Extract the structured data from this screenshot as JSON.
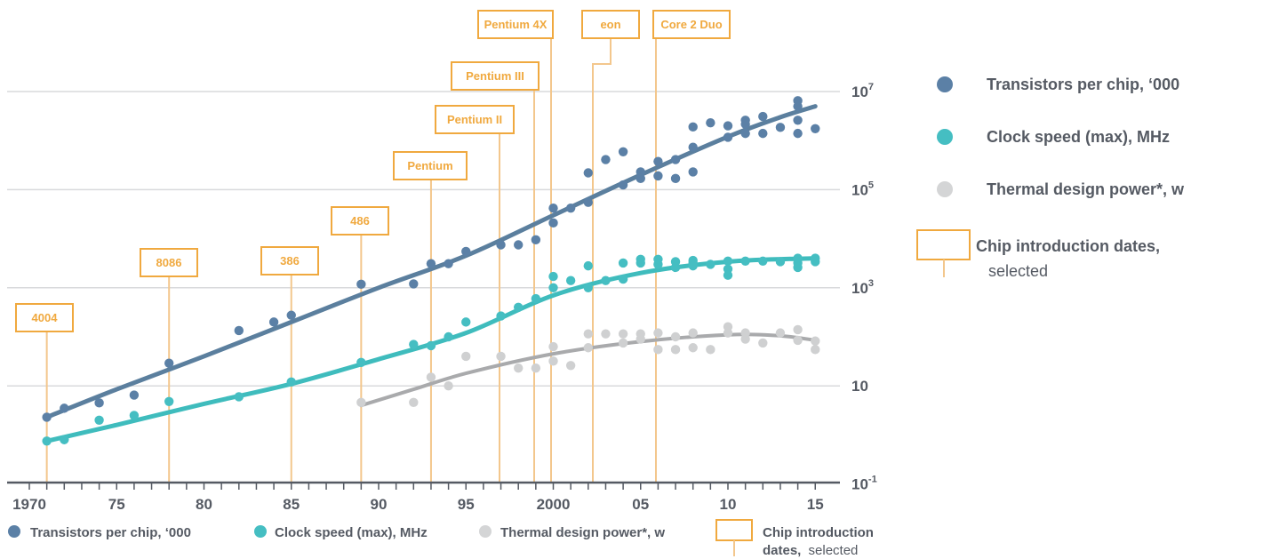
{
  "chart_data": {
    "type": "scatter",
    "x_ticks": [
      {
        "value": 1970,
        "label": "1970"
      },
      {
        "value": 1975,
        "label": "75"
      },
      {
        "value": 1980,
        "label": "80"
      },
      {
        "value": 1985,
        "label": "85"
      },
      {
        "value": 1990,
        "label": "90"
      },
      {
        "value": 1995,
        "label": "95"
      },
      {
        "value": 2000,
        "label": "2000"
      },
      {
        "value": 2005,
        "label": "05"
      },
      {
        "value": 2010,
        "label": "10"
      },
      {
        "value": 2015,
        "label": "15"
      }
    ],
    "xlim": [
      1969,
      2016
    ],
    "y_scale": "log",
    "ylim": [
      0.1,
      10000000
    ],
    "y_ticks": [
      {
        "value": 0.1,
        "base": "10",
        "exp": "-1"
      },
      {
        "value": 10,
        "base": "10",
        "exp": ""
      },
      {
        "value": 1000,
        "base": "10",
        "exp": "3"
      },
      {
        "value": 100000,
        "base": "10",
        "exp": "5"
      },
      {
        "value": 10000000,
        "base": "10",
        "exp": "7"
      }
    ],
    "grid": true,
    "series": [
      {
        "name": "Transistors per chip, ‘000",
        "color": "#5b80a6",
        "points": [
          [
            1971,
            2.3
          ],
          [
            1972,
            3.5
          ],
          [
            1974,
            4.5
          ],
          [
            1976,
            6.5
          ],
          [
            1978,
            29
          ],
          [
            1982,
            134
          ],
          [
            1984,
            200
          ],
          [
            1985,
            275
          ],
          [
            1989,
            1180
          ],
          [
            1992,
            1200
          ],
          [
            1993,
            3100
          ],
          [
            1994,
            3100
          ],
          [
            1995,
            5500
          ],
          [
            1997,
            7500
          ],
          [
            1998,
            7500
          ],
          [
            1999,
            9500
          ],
          [
            2000,
            21000
          ],
          [
            2000,
            42000
          ],
          [
            2001,
            42000
          ],
          [
            2002,
            55000
          ],
          [
            2002,
            220000
          ],
          [
            2003,
            410000
          ],
          [
            2004,
            592000
          ],
          [
            2004,
            125000
          ],
          [
            2005,
            230000
          ],
          [
            2005,
            169000
          ],
          [
            2006,
            376000
          ],
          [
            2006,
            191000
          ],
          [
            2007,
            410000
          ],
          [
            2007,
            169000
          ],
          [
            2008,
            731000
          ],
          [
            2008,
            230000
          ],
          [
            2008,
            1900000
          ],
          [
            2009,
            2300000
          ],
          [
            2010,
            2000000
          ],
          [
            2010,
            1170000
          ],
          [
            2011,
            2600000
          ],
          [
            2011,
            1400000
          ],
          [
            2011,
            2160000
          ],
          [
            2012,
            1400000
          ],
          [
            2012,
            3100000
          ],
          [
            2013,
            1860000
          ],
          [
            2014,
            2600000
          ],
          [
            2014,
            5000000
          ],
          [
            2014,
            1400000
          ],
          [
            2014,
            6500000
          ],
          [
            2015,
            1750000
          ]
        ],
        "trend": [
          [
            1971,
            2.3
          ],
          [
            1975,
            8.5
          ],
          [
            1980,
            40
          ],
          [
            1985,
            200
          ],
          [
            1990,
            1000
          ],
          [
            1995,
            4500
          ],
          [
            2000,
            30000
          ],
          [
            2005,
            200000
          ],
          [
            2010,
            1200000
          ],
          [
            2013,
            3000000
          ],
          [
            2015,
            5000000
          ]
        ]
      },
      {
        "name": "Clock speed (max), MHz",
        "color": "#45bec2",
        "points": [
          [
            1971,
            0.75
          ],
          [
            1972,
            0.8
          ],
          [
            1974,
            2
          ],
          [
            1976,
            2.5
          ],
          [
            1978,
            4.8
          ],
          [
            1982,
            6
          ],
          [
            1985,
            12
          ],
          [
            1989,
            30
          ],
          [
            1992,
            70
          ],
          [
            1993,
            66
          ],
          [
            1994,
            100
          ],
          [
            1995,
            200
          ],
          [
            1997,
            266
          ],
          [
            1998,
            400
          ],
          [
            1999,
            600
          ],
          [
            2000,
            1000
          ],
          [
            2000,
            1700
          ],
          [
            2001,
            1400
          ],
          [
            2002,
            1000
          ],
          [
            2002,
            2800
          ],
          [
            2003,
            1400
          ],
          [
            2004,
            1500
          ],
          [
            2004,
            3200
          ],
          [
            2005,
            3200
          ],
          [
            2005,
            3800
          ],
          [
            2006,
            3000
          ],
          [
            2006,
            3800
          ],
          [
            2007,
            2600
          ],
          [
            2007,
            3400
          ],
          [
            2008,
            3200
          ],
          [
            2008,
            2800
          ],
          [
            2008,
            3600
          ],
          [
            2009,
            3000
          ],
          [
            2010,
            3500
          ],
          [
            2010,
            2400
          ],
          [
            2010,
            1800
          ],
          [
            2011,
            3500
          ],
          [
            2012,
            3500
          ],
          [
            2013,
            3400
          ],
          [
            2014,
            2600
          ],
          [
            2014,
            3200
          ],
          [
            2014,
            4000
          ],
          [
            2015,
            3400
          ],
          [
            2015,
            4000
          ]
        ],
        "trend": [
          [
            1971,
            0.75
          ],
          [
            1975,
            1.6
          ],
          [
            1980,
            4.3
          ],
          [
            1985,
            11
          ],
          [
            1990,
            35
          ],
          [
            1995,
            120
          ],
          [
            2000,
            700
          ],
          [
            2005,
            2000
          ],
          [
            2010,
            3400
          ],
          [
            2015,
            4000
          ]
        ]
      },
      {
        "name": "Thermal design power*, w",
        "color": "#bdbebf",
        "points": [
          [
            1989,
            4.6
          ],
          [
            1992,
            4.6
          ],
          [
            1993,
            15
          ],
          [
            1994,
            10
          ],
          [
            1995,
            40
          ],
          [
            1997,
            40
          ],
          [
            1998,
            23
          ],
          [
            1999,
            23
          ],
          [
            2000,
            32
          ],
          [
            2000,
            63
          ],
          [
            2001,
            26
          ],
          [
            2002,
            60
          ],
          [
            2002,
            115
          ],
          [
            2003,
            115
          ],
          [
            2004,
            75
          ],
          [
            2004,
            115
          ],
          [
            2005,
            90
          ],
          [
            2005,
            115
          ],
          [
            2006,
            55
          ],
          [
            2006,
            120
          ],
          [
            2007,
            55
          ],
          [
            2007,
            100
          ],
          [
            2008,
            60
          ],
          [
            2008,
            120
          ],
          [
            2009,
            55
          ],
          [
            2010,
            120
          ],
          [
            2010,
            160
          ],
          [
            2011,
            90
          ],
          [
            2011,
            120
          ],
          [
            2012,
            75
          ],
          [
            2013,
            120
          ],
          [
            2014,
            85
          ],
          [
            2014,
            140
          ],
          [
            2015,
            55
          ],
          [
            2015,
            82
          ]
        ],
        "trend": [
          [
            1989,
            4
          ],
          [
            1992,
            8.5
          ],
          [
            1995,
            18
          ],
          [
            2000,
            45
          ],
          [
            2005,
            80
          ],
          [
            2010,
            110
          ],
          [
            2013,
            105
          ],
          [
            2015,
            85
          ]
        ]
      }
    ],
    "chip_markers": [
      {
        "label": "4004",
        "year": 1971
      },
      {
        "label": "8086",
        "year": 1978
      },
      {
        "label": "386",
        "year": 1985
      },
      {
        "label": "486",
        "year": 1989
      },
      {
        "label": "Pentium",
        "year": 1993
      },
      {
        "label": "Pentium II",
        "year": 1997
      },
      {
        "label": "Pentium III",
        "year": 1999
      },
      {
        "label": "Pentium 4X",
        "year": 2000
      },
      {
        "label": "eon",
        "year": 2001
      },
      {
        "label": "Core 2 Duo",
        "year": 2006
      }
    ]
  },
  "legend_right": {
    "transistors": "Transistors per chip, ‘000",
    "clock": "Clock speed (max), MHz",
    "power": "Thermal design power*, w",
    "chip_bold": "Chip introduction dates,",
    "chip_light": "selected"
  },
  "legend_bottom": {
    "transistors": "Transistors  per chip, ‘000",
    "clock": "Clock speed (max), MHz",
    "power": "Thermal design power*, w",
    "chip_bold_1": "Chip introduction",
    "chip_bold_2": "dates,",
    "chip_light": "selected"
  },
  "colors": {
    "transistors": "#5b80a6",
    "transistors_trend": "#5b7f9e",
    "clock": "#45bec2",
    "clock_trend": "#3fbcbd",
    "power": "#bdbebf",
    "power_trend": "#a9aaac",
    "chip": "#f0a93f",
    "chip_line": "#f3c78d",
    "text": "#555a63",
    "grid": "#d9dadc",
    "axis": "#555a63"
  }
}
